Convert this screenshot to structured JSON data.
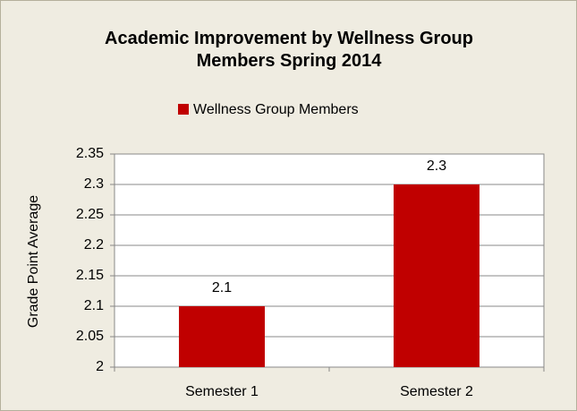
{
  "chart_data": {
    "type": "bar",
    "title": "Academic Improvement by Wellness Group Members Spring 2014",
    "y_label": "Grade Point Average",
    "categories": [
      "Semester 1",
      "Semester 2"
    ],
    "series": [
      {
        "name": "Wellness Group Members",
        "color": "#c00000",
        "values": [
          2.1,
          2.3
        ]
      }
    ],
    "ylim": [
      2,
      2.35
    ],
    "yticks": [
      2,
      2.05,
      2.1,
      2.15,
      2.2,
      2.25,
      2.3,
      2.35
    ],
    "grid": true,
    "legend": "top"
  }
}
